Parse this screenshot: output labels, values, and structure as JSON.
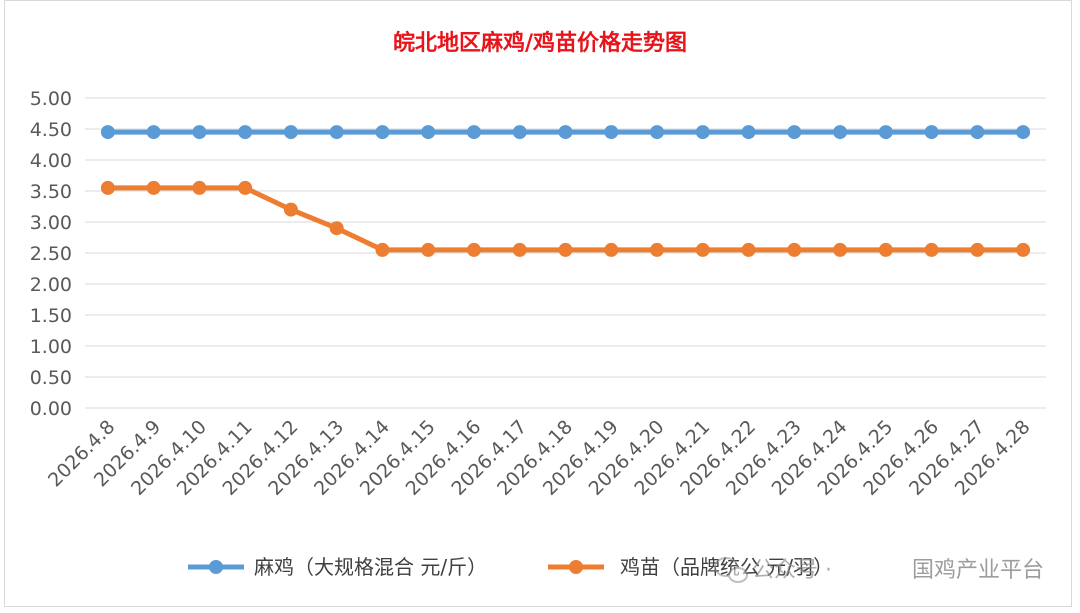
{
  "chart_data": {
    "type": "line",
    "title": "皖北地区麻鸡/鸡苗价格走势图",
    "categories": [
      "2026.4.8",
      "2026.4.9",
      "2026.4.10",
      "2026.4.11",
      "2026.4.12",
      "2026.4.13",
      "2026.4.14",
      "2026.4.15",
      "2026.4.16",
      "2026.4.17",
      "2026.4.18",
      "2026.4.19",
      "2026.4.20",
      "2026.4.21",
      "2026.4.22",
      "2026.4.23",
      "2026.4.24",
      "2026.4.25",
      "2026.4.26",
      "2026.4.27",
      "2026.4.28"
    ],
    "y_ticks": [
      "0.00",
      "0.50",
      "1.00",
      "1.50",
      "2.00",
      "2.50",
      "3.00",
      "3.50",
      "4.00",
      "4.50",
      "5.00"
    ],
    "ylim": [
      0,
      5
    ],
    "grid": "horizontal",
    "legend_position": "bottom",
    "series": [
      {
        "name": "麻鸡（大规格混合 元/斤）",
        "color": "#5b9bd5",
        "values": [
          4.45,
          4.45,
          4.45,
          4.45,
          4.45,
          4.45,
          4.45,
          4.45,
          4.45,
          4.45,
          4.45,
          4.45,
          4.45,
          4.45,
          4.45,
          4.45,
          4.45,
          4.45,
          4.45,
          4.45,
          4.45
        ]
      },
      {
        "name": "鸡苗（品牌统公 元/羽）",
        "color": "#ed7d31",
        "values": [
          3.55,
          3.55,
          3.55,
          3.55,
          3.2,
          2.9,
          2.55,
          2.55,
          2.55,
          2.55,
          2.55,
          2.55,
          2.55,
          2.55,
          2.55,
          2.55,
          2.55,
          2.55,
          2.55,
          2.55,
          2.55
        ]
      }
    ]
  },
  "watermark": {
    "prefix": "公众号 · ",
    "text": "国鸡产业平台",
    "icon": "wechat-icon"
  }
}
